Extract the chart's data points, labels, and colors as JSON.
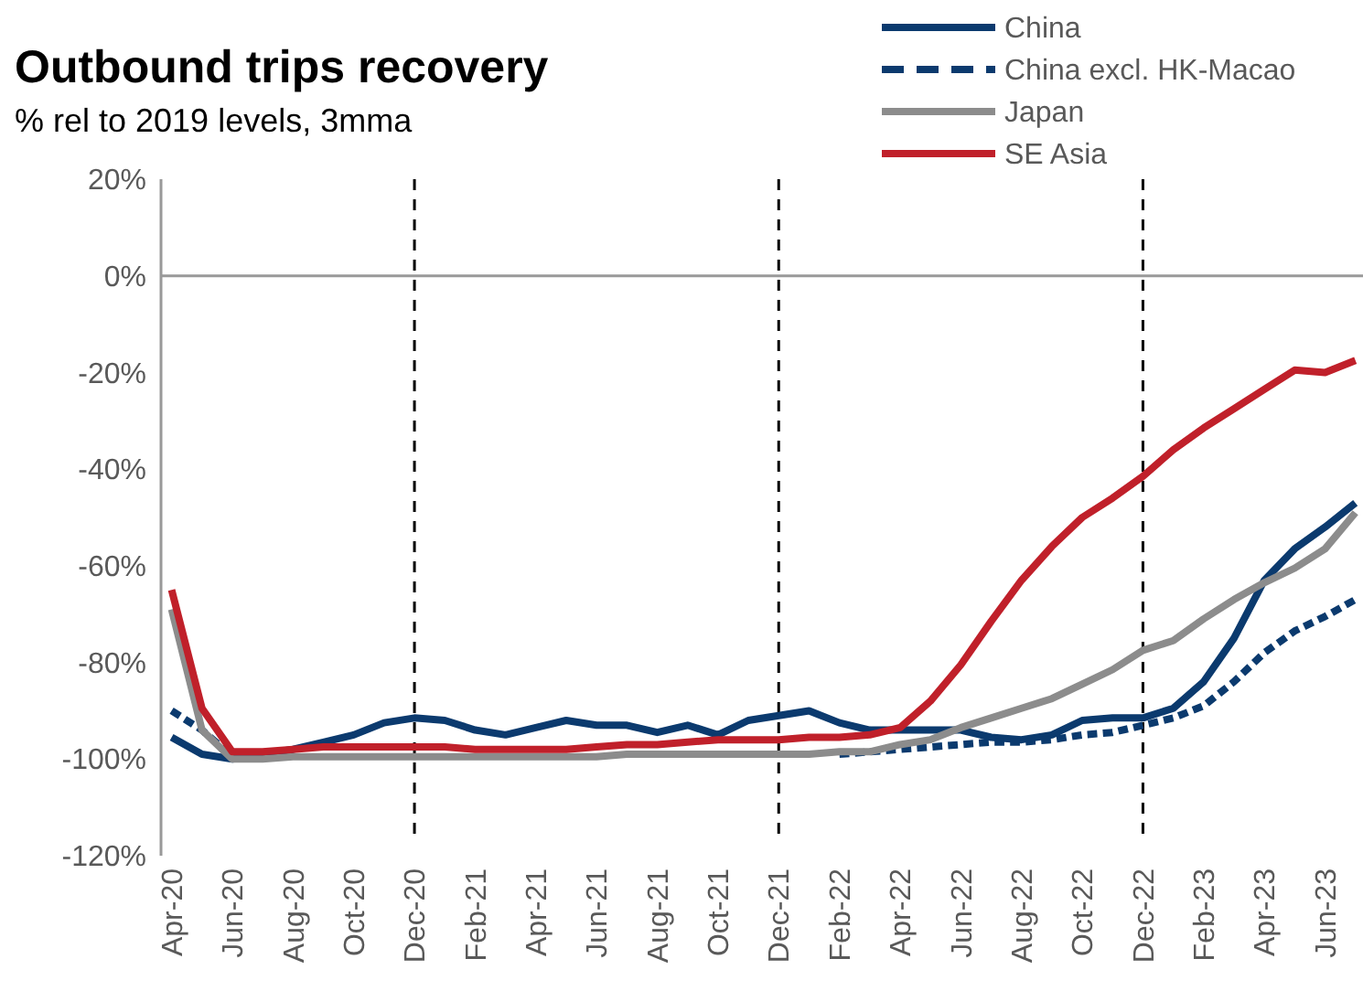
{
  "chart_data": {
    "type": "line",
    "title": "Outbound trips recovery",
    "subtitle": "% rel to 2019 levels, 3mma",
    "categories": [
      "Apr-20",
      null,
      "Jun-20",
      null,
      "Aug-20",
      null,
      "Oct-20",
      null,
      "Dec-20",
      null,
      "Feb-21",
      null,
      "Apr-21",
      null,
      "Jun-21",
      null,
      "Aug-21",
      null,
      "Oct-21",
      null,
      "Dec-21",
      null,
      "Feb-22",
      null,
      "Apr-22",
      null,
      "Jun-22",
      null,
      "Aug-22",
      null,
      "Oct-22",
      null,
      "Dec-22",
      null,
      "Feb-23",
      null,
      "Apr-23",
      null,
      "Jun-23",
      null
    ],
    "series": [
      {
        "name": "China",
        "color": "#0b3a6e",
        "line_style": "solid",
        "values": [
          -95.5,
          -99,
          -100,
          -99,
          -98,
          -96.5,
          -95,
          -92.5,
          -91.5,
          -92,
          -94,
          -95,
          -93.5,
          -92,
          -93,
          -93,
          -94.5,
          -93,
          -95,
          -92,
          -91,
          -90,
          -92.5,
          -94,
          -94,
          -94,
          -94,
          -95.5,
          -96,
          -95,
          -92,
          -91.5,
          -91.5,
          -89.5,
          -84,
          -75,
          -63,
          -56.5,
          -52,
          -47
        ]
      },
      {
        "name": "China excl. HK-Macao",
        "color": "#0b3a6e",
        "line_style": "dashed",
        "values": [
          -90,
          -94,
          -99.5,
          null,
          null,
          null,
          null,
          null,
          null,
          null,
          null,
          null,
          null,
          null,
          null,
          null,
          null,
          null,
          null,
          null,
          null,
          null,
          -99,
          -98.5,
          -98,
          -97.5,
          -97,
          -96.5,
          -96.5,
          -96,
          -95,
          -94.5,
          -93,
          -91.5,
          -89,
          -84,
          -78,
          -73.5,
          -70.5,
          -67
        ]
      },
      {
        "name": "Japan",
        "color": "#8c8c8c",
        "line_style": "solid",
        "values": [
          -69,
          -94,
          -100,
          -100,
          -99.5,
          -99.5,
          -99.5,
          -99.5,
          -99.5,
          -99.5,
          -99.5,
          -99.5,
          -99.5,
          -99.5,
          -99.5,
          -99,
          -99,
          -99,
          -99,
          -99,
          -99,
          -99,
          -98.5,
          -98.5,
          -97,
          -96,
          -93.5,
          -91.5,
          -89.5,
          -87.5,
          -84.5,
          -81.5,
          -77.5,
          -75.5,
          -71,
          -67,
          -63.5,
          -60.5,
          -56.5,
          -49
        ]
      },
      {
        "name": "SE Asia",
        "color": "#c0202a",
        "line_style": "solid",
        "values": [
          -65,
          -89.5,
          -98.5,
          -98.5,
          -98,
          -97.5,
          -97.5,
          -97.5,
          -97.5,
          -97.5,
          -98,
          -98,
          -98,
          -98,
          -97.5,
          -97,
          -97,
          -96.5,
          -96,
          -96,
          -96,
          -95.5,
          -95.5,
          -95,
          -93.5,
          -88,
          -80.5,
          -71.5,
          -63,
          -56,
          -50,
          -46,
          -41.5,
          -36,
          -31.5,
          -27.5,
          -23.5,
          -19.5,
          -20,
          -17.5
        ]
      }
    ],
    "ylim": [
      -120,
      20
    ],
    "yticks": [
      {
        "value": -120,
        "label": "-120%"
      },
      {
        "value": -100,
        "label": "-100%"
      },
      {
        "value": -80,
        "label": "-80%"
      },
      {
        "value": -60,
        "label": "-60%"
      },
      {
        "value": -40,
        "label": "-40%"
      },
      {
        "value": -20,
        "label": "-20%"
      },
      {
        "value": 0,
        "label": "0%"
      },
      {
        "value": 20,
        "label": "20%"
      }
    ],
    "ref_lines": [
      {
        "axis": "y",
        "value": 0,
        "color": "#999999",
        "line_style": "solid"
      },
      {
        "axis": "x",
        "value": "Dec-20",
        "color": "#000000",
        "line_style": "dashed"
      },
      {
        "axis": "x",
        "value": "Dec-21",
        "color": "#000000",
        "line_style": "dashed"
      },
      {
        "axis": "x",
        "value": "Dec-22",
        "color": "#000000",
        "line_style": "dashed"
      }
    ],
    "grid": false,
    "legend": "top right",
    "marker": "none"
  }
}
